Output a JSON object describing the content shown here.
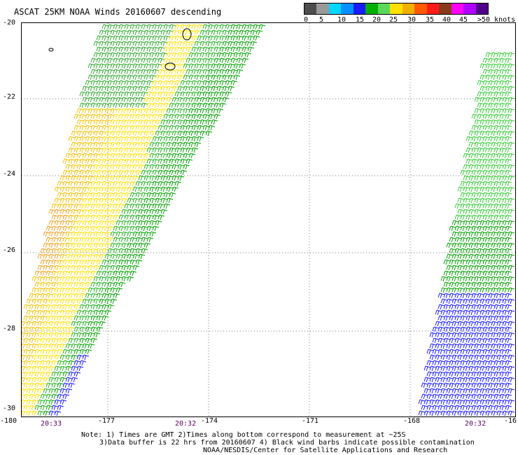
{
  "title": "ASCAT 25KM NOAA Winds 20160607 descending",
  "legend": {
    "colors": [
      "#4d4d4d",
      "#9a9a9a",
      "#00d8ff",
      "#0090ff",
      "#1a1aff",
      "#00b000",
      "#5ad85a",
      "#ffe000",
      "#f0b000",
      "#ff5a00",
      "#ff1a1a",
      "#8a3a1a",
      "#ff00ff",
      "#b000ff",
      "#50008a"
    ],
    "labels": [
      "0",
      "5",
      "10",
      "15",
      "20",
      "25",
      "30",
      "35",
      "40",
      "45",
      ">50 knots"
    ]
  },
  "y_axis_labels": [
    "-20",
    "-22",
    "-24",
    "-26",
    "-28",
    "-30"
  ],
  "x_axis_labels": [
    "-180",
    "-177",
    "-174",
    "-171",
    "-168",
    "-16"
  ],
  "pass_times": [
    "20:33",
    "20:32",
    "20:32"
  ],
  "notes": {
    "line1": "Note: 1) Times are GMT 2)Times along bottom correspond to measurement at ~25S",
    "line2": "3)Data buffer is 22 hrs from 20160607 4) Black wind barbs indicate possible contamination",
    "line3": "NOAA/NESDIS/Center for Satellite Applications and Research"
  }
}
